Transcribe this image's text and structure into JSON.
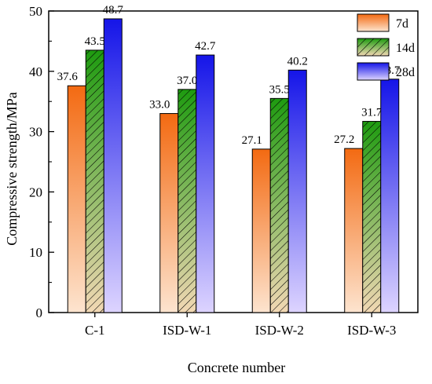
{
  "chart_data": {
    "type": "bar",
    "xlabel": "Concrete number",
    "ylabel": "Compressive strength/MPa",
    "ylim": [
      0,
      50
    ],
    "yticks": [
      0,
      10,
      20,
      30,
      40,
      50
    ],
    "categories": [
      "C-1",
      "ISD-W-1",
      "ISD-W-2",
      "ISD-W-3"
    ],
    "series": [
      {
        "name": "7d",
        "values": [
          37.6,
          33.0,
          27.1,
          27.2
        ],
        "colors": [
          "#f36a12",
          "#fde4cf"
        ],
        "pattern": "none"
      },
      {
        "name": "14d",
        "values": [
          43.5,
          37.0,
          35.5,
          31.7
        ],
        "colors": [
          "#1e9b10",
          "#f2d8b4"
        ],
        "pattern": "hatch"
      },
      {
        "name": "28d",
        "values": [
          48.7,
          42.7,
          40.2,
          38.7
        ],
        "colors": [
          "#1515e8",
          "#ddd4ff"
        ],
        "pattern": "none"
      }
    ],
    "value_labels": [
      [
        "37.6",
        "33.0",
        "27.1",
        "27.2"
      ],
      [
        "43.5",
        "37.0",
        "35.5",
        "31.7"
      ],
      [
        "48.7",
        "42.7",
        "40.2",
        "38.7"
      ]
    ],
    "legend": "top-right",
    "grid": false
  }
}
